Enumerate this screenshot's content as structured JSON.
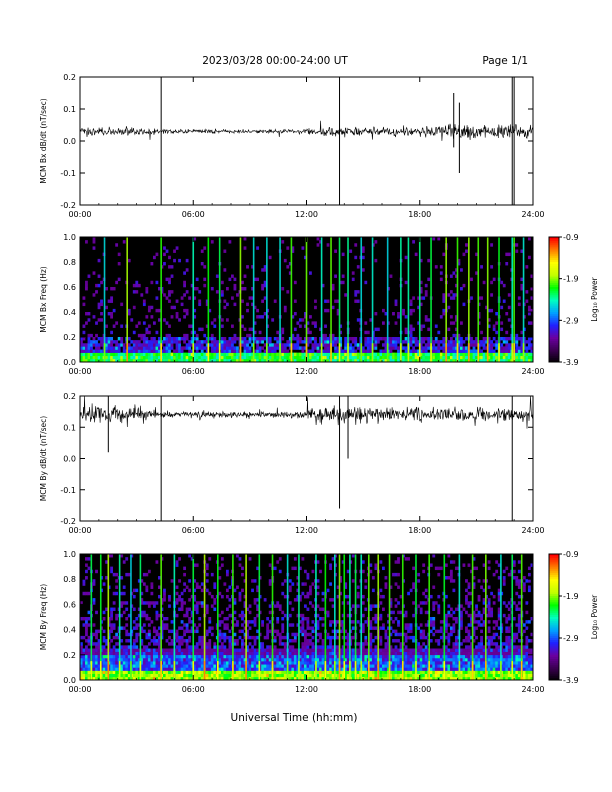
{
  "header": {
    "title": "2023/03/28  00:00-24:00 UT",
    "page": "Page 1/1"
  },
  "footer": {
    "xlabel": "Universal Time (hh:mm)"
  },
  "colors": {
    "trace": "#000000",
    "spectrogram_background": "#000000",
    "colormap": [
      "#000000",
      "#3a0050",
      "#6a00a0",
      "#2020ff",
      "#00a0ff",
      "#00ffc0",
      "#00ff00",
      "#c0ff00",
      "#ffff00",
      "#ff8000",
      "#ff0000"
    ]
  },
  "chart_data": [
    {
      "type": "line",
      "panel": "bx-waveform",
      "ylabel": "MCM Bx dB/dt (nT/sec)",
      "xlim": [
        0,
        24
      ],
      "ylim": [
        -0.2,
        0.2
      ],
      "x_ticks": [
        "00:00",
        "06:00",
        "12:00",
        "18:00",
        "24:00"
      ],
      "y_ticks": [
        "-0.2",
        "-0.1",
        "0.0",
        "0.1",
        "0.2"
      ],
      "baseline": 0.03,
      "noise_segments": [
        {
          "from_h": 0,
          "to_h": 4,
          "amplitude": 0.012
        },
        {
          "from_h": 4,
          "to_h": 12,
          "amplitude": 0.006
        },
        {
          "from_h": 12,
          "to_h": 18,
          "amplitude": 0.012
        },
        {
          "from_h": 18,
          "to_h": 24,
          "amplitude": 0.02
        }
      ],
      "spikes": [
        {
          "t_h": 4.3,
          "min": -0.2,
          "max": 0.2
        },
        {
          "t_h": 13.75,
          "min": -0.2,
          "max": 0.2
        },
        {
          "t_h": 19.8,
          "min": -0.02,
          "max": 0.15
        },
        {
          "t_h": 20.1,
          "min": -0.1,
          "max": 0.12
        },
        {
          "t_h": 22.9,
          "min": -0.2,
          "max": 0.2
        },
        {
          "t_h": 23.0,
          "min": -0.2,
          "max": 0.2
        }
      ]
    },
    {
      "type": "heatmap",
      "panel": "bx-spectrogram",
      "ylabel": "MCM Bx Freq (Hz)",
      "xlim": [
        0,
        24
      ],
      "ylim": [
        0,
        1.0
      ],
      "x_ticks": [
        "00:00",
        "06:00",
        "12:00",
        "18:00",
        "24:00"
      ],
      "y_ticks": [
        "0.0",
        "0.2",
        "0.4",
        "0.6",
        "0.8",
        "1.0"
      ],
      "colorbar": {
        "label": "Log₁₀ Power",
        "range": [
          -3.9,
          -0.9
        ],
        "ticks": [
          "-0.9",
          "-1.9",
          "-2.9",
          "-3.9"
        ]
      },
      "background_level": 0.12,
      "bright_lines_h": [
        4.3,
        6.0,
        6.8,
        7.4,
        8.5,
        9.2,
        9.9,
        10.6,
        11.2,
        12.0,
        12.8,
        13.3,
        13.75,
        14.2,
        14.9,
        15.5,
        16.3,
        17.0,
        17.4,
        18.0,
        18.6,
        19.4,
        20.0,
        20.6,
        21.1,
        21.6,
        22.2,
        22.9,
        23.0,
        23.5,
        1.3,
        2.5
      ]
    },
    {
      "type": "line",
      "panel": "by-waveform",
      "ylabel": "MCM By dB/dt (nT/sec)",
      "xlim": [
        0,
        24
      ],
      "ylim": [
        -0.2,
        0.2
      ],
      "x_ticks": [
        "00:00",
        "06:00",
        "12:00",
        "18:00",
        "24:00"
      ],
      "y_ticks": [
        "-0.2",
        "-0.1",
        "0.0",
        "0.1",
        "0.2"
      ],
      "baseline": 0.14,
      "noise_segments": [
        {
          "from_h": 0,
          "to_h": 4,
          "amplitude": 0.025
        },
        {
          "from_h": 4,
          "to_h": 12,
          "amplitude": 0.01
        },
        {
          "from_h": 12,
          "to_h": 15,
          "amplitude": 0.03
        },
        {
          "from_h": 15,
          "to_h": 24,
          "amplitude": 0.02
        }
      ],
      "spikes": [
        {
          "t_h": 1.5,
          "min": 0.02,
          "max": 0.2
        },
        {
          "t_h": 4.3,
          "min": -0.2,
          "max": 0.2
        },
        {
          "t_h": 13.75,
          "min": -0.16,
          "max": 0.2
        },
        {
          "t_h": 14.2,
          "min": 0.0,
          "max": 0.2
        },
        {
          "t_h": 22.9,
          "min": -0.2,
          "max": 0.2
        }
      ]
    },
    {
      "type": "heatmap",
      "panel": "by-spectrogram",
      "ylabel": "MCM By Freq (Hz)",
      "xlim": [
        0,
        24
      ],
      "ylim": [
        0,
        1.0
      ],
      "x_ticks": [
        "00:00",
        "06:00",
        "12:00",
        "18:00",
        "24:00"
      ],
      "y_ticks": [
        "0.0",
        "0.2",
        "0.4",
        "0.6",
        "0.8",
        "1.0"
      ],
      "colorbar": {
        "label": "Log₁₀ Power",
        "range": [
          -3.9,
          -0.9
        ],
        "ticks": [
          "-0.9",
          "-1.9",
          "-2.9",
          "-3.9"
        ]
      },
      "background_level": 0.22,
      "bright_lines_h": [
        0.6,
        1.1,
        1.5,
        2.1,
        2.7,
        3.2,
        4.3,
        5.0,
        6.0,
        6.6,
        7.3,
        8.1,
        8.8,
        9.5,
        10.2,
        11.0,
        11.6,
        12.5,
        13.0,
        13.5,
        13.75,
        14.0,
        14.3,
        14.6,
        14.9,
        15.3,
        15.8,
        16.4,
        17.1,
        17.8,
        18.5,
        19.3,
        20.1,
        20.8,
        21.5,
        22.3,
        22.9,
        23.4
      ]
    }
  ]
}
